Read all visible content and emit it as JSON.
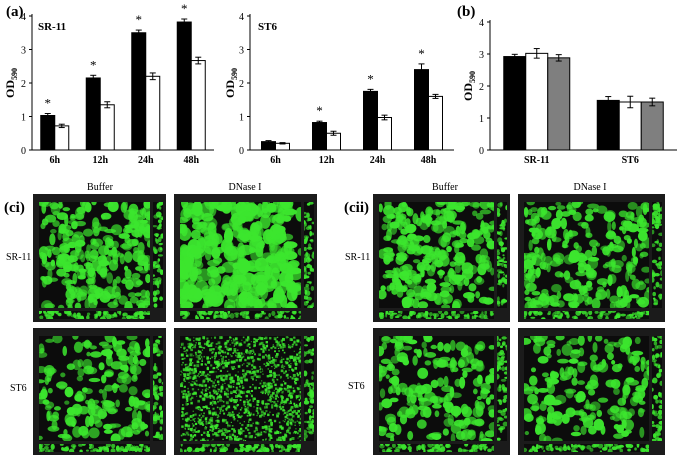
{
  "panel_labels": {
    "a": "(a)",
    "b": "(b)",
    "ci": "(ci)",
    "cii": "(cii)"
  },
  "colors": {
    "black_bar": "#000000",
    "white_bar": "#ffffff",
    "gray_bar": "#7f7f7f",
    "fluorescence": "#3ce62e",
    "background": "#0c0c0c"
  },
  "chart_data": [
    {
      "type": "bar",
      "title": "SR-11",
      "ylabel": "OD590",
      "ylabel_main": "OD",
      "ylabel_sub": "590",
      "categories": [
        "6h",
        "12h",
        "24h",
        "48h"
      ],
      "ylim": [
        0,
        4
      ],
      "yticks": [
        "0",
        "1",
        "2",
        "3",
        "4"
      ],
      "series": [
        {
          "color": "#000000",
          "values": [
            1.03,
            2.15,
            3.5,
            3.82
          ],
          "errors": [
            0.06,
            0.08,
            0.08,
            0.09
          ]
        },
        {
          "color": "#ffffff",
          "values": [
            0.72,
            1.35,
            2.2,
            2.67
          ],
          "errors": [
            0.05,
            0.09,
            0.1,
            0.1
          ]
        }
      ],
      "annotations": [
        "*",
        "*",
        "*",
        "*"
      ]
    },
    {
      "type": "bar",
      "title": "ST6",
      "ylabel": "OD590",
      "ylabel_main": "OD",
      "ylabel_sub": "590",
      "categories": [
        "6h",
        "12h",
        "24h",
        "48h"
      ],
      "ylim": [
        0,
        4
      ],
      "yticks": [
        "0",
        "1",
        "2",
        "3",
        "4"
      ],
      "series": [
        {
          "color": "#000000",
          "values": [
            0.25,
            0.82,
            1.75,
            2.4
          ],
          "errors": [
            0.03,
            0.04,
            0.06,
            0.17
          ]
        },
        {
          "color": "#ffffff",
          "values": [
            0.2,
            0.5,
            0.97,
            1.6
          ],
          "errors": [
            0.02,
            0.06,
            0.07,
            0.06
          ]
        }
      ],
      "annotations": [
        "",
        "*",
        "*",
        "*"
      ]
    },
    {
      "type": "bar",
      "title": "",
      "ylabel": "OD590",
      "ylabel_main": "OD",
      "ylabel_sub": "590",
      "categories": [
        "SR-11",
        "ST6"
      ],
      "ylim": [
        0,
        4
      ],
      "yticks": [
        "0",
        "1",
        "2",
        "3",
        "4"
      ],
      "series": [
        {
          "color": "#000000",
          "values": [
            2.92,
            1.55
          ],
          "errors": [
            0.07,
            0.12
          ]
        },
        {
          "color": "#ffffff",
          "values": [
            3.02,
            1.5
          ],
          "errors": [
            0.15,
            0.18
          ]
        },
        {
          "color": "#7f7f7f",
          "values": [
            2.88,
            1.5
          ],
          "errors": [
            0.1,
            0.12
          ]
        }
      ],
      "annotations": [
        "",
        ""
      ]
    }
  ],
  "microscopy": {
    "ci": {
      "col_titles": [
        "Buffer",
        "DNase I"
      ],
      "row_titles": [
        "SR-11",
        "ST6"
      ]
    },
    "cii": {
      "col_titles": [
        "Buffer",
        "DNase I"
      ],
      "row_titles": [
        "SR-11",
        "ST6"
      ]
    }
  }
}
